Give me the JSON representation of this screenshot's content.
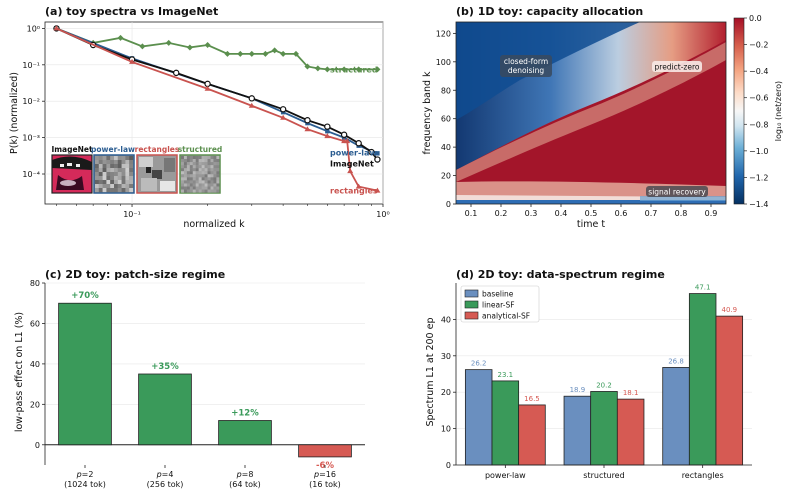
{
  "colors": {
    "powerlaw": "#2b5d91",
    "imagenet": "#111111",
    "rectangles": "#c9534f",
    "structured": "#5b8f4e",
    "bar_green": "#3a9a5a",
    "bar_red": "#d65a53",
    "bar_blue": "#6a8fbf"
  },
  "chart_data": [
    {
      "type": "line",
      "title": "(a) toy spectra vs ImageNet",
      "xlabel": "normalized k",
      "ylabel": "P(k)  (normalized)",
      "xscale": "log",
      "yscale": "log",
      "xlim": [
        0.045,
        1.0
      ],
      "ylim": [
        1.5e-05,
        1.5
      ],
      "x_ticks": [
        "10⁻¹",
        "10⁰"
      ],
      "y_ticks": [
        "10⁻⁴",
        "10⁻³",
        "10⁻²",
        "10⁻¹",
        "10⁰"
      ],
      "series": [
        {
          "name": "structured",
          "color_key": "structured",
          "marker": "diamond",
          "points": [
            [
              0.05,
              1.0
            ],
            [
              0.07,
              0.4
            ],
            [
              0.09,
              0.55
            ],
            [
              0.11,
              0.32
            ],
            [
              0.14,
              0.4
            ],
            [
              0.17,
              0.3
            ],
            [
              0.2,
              0.35
            ],
            [
              0.24,
              0.2
            ],
            [
              0.27,
              0.2
            ],
            [
              0.3,
              0.2
            ],
            [
              0.34,
              0.2
            ],
            [
              0.37,
              0.25
            ],
            [
              0.4,
              0.2
            ],
            [
              0.45,
              0.2
            ],
            [
              0.5,
              0.09
            ],
            [
              0.55,
              0.08
            ],
            [
              0.6,
              0.075
            ],
            [
              0.7,
              0.075
            ],
            [
              0.8,
              0.075
            ],
            [
              0.95,
              0.075
            ]
          ]
        },
        {
          "name": "power-law",
          "color_key": "powerlaw",
          "marker": "square",
          "points": [
            [
              0.05,
              1.0
            ],
            [
              0.1,
              0.15
            ],
            [
              0.2,
              0.03
            ],
            [
              0.3,
              0.012
            ],
            [
              0.4,
              0.005
            ],
            [
              0.5,
              0.0025
            ],
            [
              0.6,
              0.0015
            ],
            [
              0.7,
              0.001
            ],
            [
              0.8,
              0.0006
            ],
            [
              0.95,
              0.00037
            ]
          ]
        },
        {
          "name": "ImageNet",
          "color_key": "imagenet",
          "marker": "circle",
          "points": [
            [
              0.05,
              1.0
            ],
            [
              0.07,
              0.35
            ],
            [
              0.1,
              0.14
            ],
            [
              0.15,
              0.06
            ],
            [
              0.2,
              0.03
            ],
            [
              0.3,
              0.012
            ],
            [
              0.4,
              0.006
            ],
            [
              0.5,
              0.003
            ],
            [
              0.6,
              0.002
            ],
            [
              0.7,
              0.0012
            ],
            [
              0.8,
              0.0007
            ],
            [
              0.9,
              0.0004
            ],
            [
              0.95,
              0.00025
            ]
          ]
        },
        {
          "name": "rectangles",
          "color_key": "rectangles",
          "marker": "triangle",
          "points": [
            [
              0.05,
              1.0
            ],
            [
              0.1,
              0.12
            ],
            [
              0.2,
              0.022
            ],
            [
              0.3,
              0.0075
            ],
            [
              0.4,
              0.0035
            ],
            [
              0.5,
              0.0017
            ],
            [
              0.6,
              0.0011
            ],
            [
              0.7,
              0.0008
            ],
            [
              0.72,
              0.0008
            ],
            [
              0.74,
              0.00012
            ],
            [
              0.8,
              4.5e-05
            ],
            [
              0.95,
              3.5e-05
            ]
          ]
        }
      ],
      "inset_labels": [
        "ImageNet",
        "power-law",
        "rectangles",
        "structured"
      ]
    },
    {
      "type": "heatmap",
      "title": "(b) 1D toy: capacity allocation",
      "xlabel": "time t",
      "ylabel": "frequency band k",
      "xlim": [
        0.05,
        0.95
      ],
      "ylim": [
        0,
        128
      ],
      "x_ticks": [
        "0.1",
        "0.2",
        "0.3",
        "0.4",
        "0.5",
        "0.6",
        "0.7",
        "0.8",
        "0.9"
      ],
      "y_ticks": [
        "0",
        "20",
        "40",
        "60",
        "80",
        "100",
        "120"
      ],
      "colorbar": {
        "label": "log₁₀ (net/zero)",
        "min": -1.4,
        "max": 0.0,
        "ticks": [
          "0.0",
          "−0.2",
          "−0.4",
          "−0.6",
          "−0.8",
          "−1.0",
          "−1.2",
          "−1.4"
        ]
      },
      "annotations": [
        "closed-form\ndenoising",
        "predict-zero",
        "signal recovery"
      ]
    },
    {
      "type": "bar",
      "title": "(c) 2D toy: patch-size regime",
      "ylabel": "low-pass effect on L1 (%)",
      "ylim": [
        -10,
        80
      ],
      "y_ticks": [
        "0",
        "20",
        "40",
        "60",
        "80"
      ],
      "categories": [
        "p=2",
        "p=4",
        "p=8",
        "p=16"
      ],
      "subcategories": [
        "(1024 tok)",
        "(256 tok)",
        "(64 tok)",
        "(16 tok)"
      ],
      "values": [
        70,
        35,
        12,
        -6
      ],
      "value_labels": [
        "+70%",
        "+35%",
        "+12%",
        "-6%"
      ]
    },
    {
      "type": "bar",
      "title": "(d) 2D toy: data-spectrum regime",
      "ylabel": "Spectrum L1 at 200 ep",
      "ylim": [
        0,
        50
      ],
      "y_ticks": [
        "0",
        "10",
        "20",
        "30",
        "40"
      ],
      "categories": [
        "power-law",
        "structured",
        "rectangles"
      ],
      "legend": "top-left",
      "series": [
        {
          "name": "baseline",
          "color_key": "bar_blue",
          "values": [
            26.2,
            18.9,
            26.8
          ],
          "labels": [
            "26.2",
            "18.9",
            "26.8"
          ]
        },
        {
          "name": "linear-SF",
          "color_key": "bar_green",
          "values": [
            23.1,
            20.2,
            47.1
          ],
          "labels": [
            "23.1",
            "20.2",
            "47.1"
          ]
        },
        {
          "name": "analytical-SF",
          "color_key": "bar_red",
          "values": [
            16.5,
            18.1,
            40.9
          ],
          "labels": [
            "16.5",
            "18.1",
            "40.9"
          ]
        }
      ]
    }
  ]
}
